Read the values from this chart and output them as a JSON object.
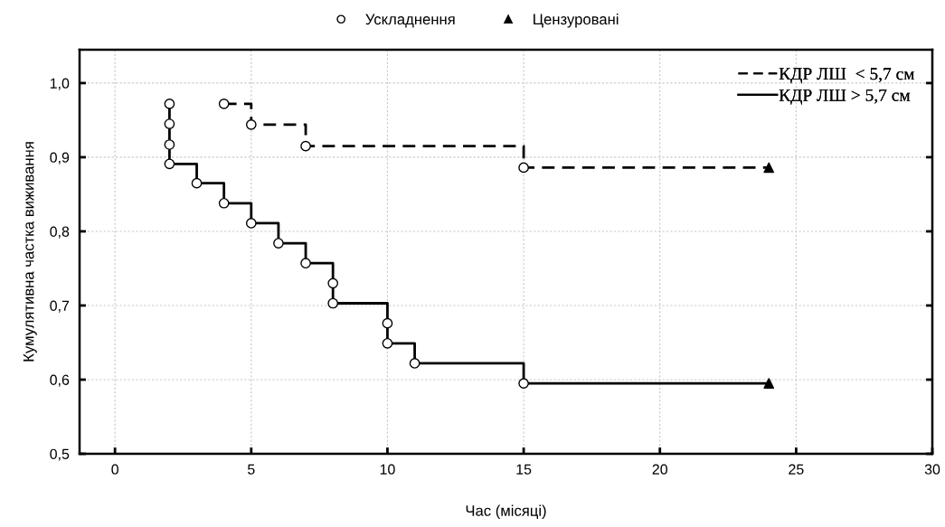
{
  "chart_data": {
    "type": "step",
    "xlabel": "Час (місяці)",
    "ylabel": "Кумулятивна частка виживання",
    "xlim": [
      -1.3,
      30
    ],
    "xticks": [
      0,
      5,
      10,
      15,
      20,
      25,
      30
    ],
    "ylim": [
      0.5,
      1.045
    ],
    "yticks": [
      {
        "value": 0.5,
        "label": "0,5"
      },
      {
        "value": 0.6,
        "label": "0,6"
      },
      {
        "value": 0.7,
        "label": "0,7"
      },
      {
        "value": 0.8,
        "label": "0,8"
      },
      {
        "value": 0.9,
        "label": "0,9"
      },
      {
        "value": 1.0,
        "label": "1,0"
      }
    ],
    "grid": true,
    "legend": "top right",
    "series": [
      {
        "name": "КДР ЛШ  < 5,7 см",
        "color": "#000000",
        "line_style": "dashed",
        "x": [
          4,
          5,
          7,
          15,
          24
        ],
        "values": [
          0.972,
          0.944,
          0.915,
          0.886,
          0.886
        ]
      },
      {
        "name": "КДР ЛШ > 5,7 см",
        "color": "#000000",
        "line_style": "solid",
        "x": [
          2,
          2,
          2,
          2,
          3,
          4,
          5,
          6,
          7,
          8,
          8,
          10,
          10,
          11,
          15,
          24
        ],
        "values": [
          0.972,
          0.945,
          0.917,
          0.891,
          0.865,
          0.838,
          0.811,
          0.784,
          0.757,
          0.73,
          0.703,
          0.676,
          0.649,
          0.622,
          0.595,
          0.595
        ]
      },
      {
        "type": "scatter",
        "name": "Ускладнення",
        "color": "#000000",
        "marker": "circle",
        "x": [
          4,
          5,
          7,
          15,
          2,
          2,
          2,
          2,
          3,
          4,
          5,
          6,
          7,
          8,
          8,
          10,
          10,
          11,
          15
        ],
        "values": [
          0.972,
          0.944,
          0.915,
          0.886,
          0.972,
          0.945,
          0.917,
          0.891,
          0.865,
          0.838,
          0.811,
          0.784,
          0.757,
          0.73,
          0.703,
          0.676,
          0.649,
          0.622,
          0.595
        ]
      },
      {
        "type": "scatter",
        "name": "Цензуровані",
        "color": "#000000",
        "marker": "triangle",
        "x": [
          24,
          24
        ],
        "values": [
          0.886,
          0.595
        ]
      }
    ]
  }
}
